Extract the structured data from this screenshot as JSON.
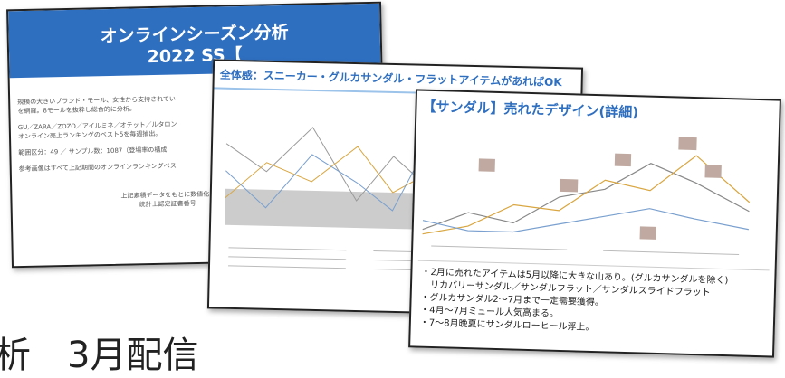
{
  "slide1": {
    "title": "オンラインシーズン分析",
    "subtitle": "2022 SS【",
    "lines": [
      "規模の大きいブランド・モール、女性から支持されてい",
      "を網羅。8モールを抜粋し総合的に分析。",
      "GU／ZARA／ZOZO／アイルミネ／オテット／ルタロン",
      "オンライン売上ランキングのベスト5を毎週抽出。",
      "範囲区分：49 ／ サンプル数：1087（登場率の構成",
      "参考画像はすべて上記期間のオンラインランキングベス"
    ],
    "footer": [
      "上記素積データをもとに数値化し毎月統計を",
      "統計士認定証書番号"
    ]
  },
  "slide2": {
    "title": "全体感：スニーカー・グルカサンダル・フラットアイテムがあればOK"
  },
  "slide3": {
    "title": "【サンダル】売れたデザイン(詳細)",
    "bullets": [
      "・2月に売れたアイテムは5月以降に大きな山あり。(グルカサンダルを除く)",
      "　リカバリーサンダル／サンダルフラット／サンダルスライドフラット",
      "・グルカサンダル2～7月まで一定需要獲得。",
      "・4月～7月ミュール人気高まる。",
      "・7～8月晩夏にサンダルローヒール浮上。"
    ]
  },
  "caption": "析　3月配信"
}
